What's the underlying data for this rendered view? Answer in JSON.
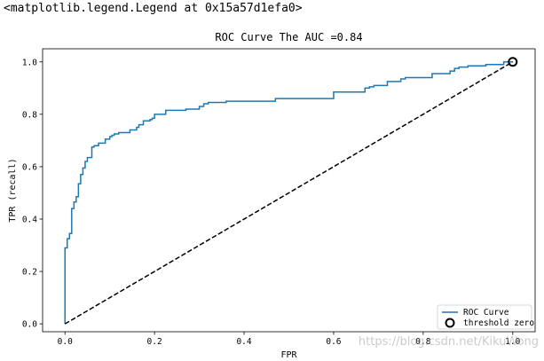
{
  "output_repr": "<matplotlib.legend.Legend at 0x15a57d1efa0>",
  "watermark": "https://blog.csdn.net/KikuWong",
  "chart_data": {
    "type": "line",
    "title": "ROC Curve The AUC =0.84",
    "xlabel": "FPR",
    "ylabel": "TPR (recall)",
    "xlim": [
      -0.05,
      1.05
    ],
    "ylim": [
      -0.03,
      1.05
    ],
    "xticks": [
      0.0,
      0.2,
      0.4,
      0.6,
      0.8,
      1.0
    ],
    "xtick_labels": [
      "0.0",
      "0.2",
      "0.4",
      "0.6",
      "0.8",
      "1.0"
    ],
    "yticks": [
      0.0,
      0.2,
      0.4,
      0.6,
      0.8,
      1.0
    ],
    "ytick_labels": [
      "0.0",
      "0.2",
      "0.4",
      "0.6",
      "0.8",
      "1.0"
    ],
    "grid": false,
    "legend_position": "lower-right",
    "series": [
      {
        "name": "ROC Curve",
        "color": "#1f77b4",
        "style": "solid",
        "x": [
          0.0,
          0.0,
          0.005,
          0.005,
          0.01,
          0.01,
          0.015,
          0.015,
          0.02,
          0.02,
          0.025,
          0.025,
          0.03,
          0.03,
          0.035,
          0.035,
          0.04,
          0.04,
          0.045,
          0.045,
          0.05,
          0.05,
          0.06,
          0.06,
          0.065,
          0.065,
          0.075,
          0.075,
          0.09,
          0.09,
          0.1,
          0.1,
          0.105,
          0.105,
          0.11,
          0.11,
          0.12,
          0.12,
          0.145,
          0.145,
          0.16,
          0.16,
          0.165,
          0.165,
          0.175,
          0.175,
          0.19,
          0.19,
          0.195,
          0.195,
          0.2,
          0.2,
          0.225,
          0.225,
          0.27,
          0.27,
          0.3,
          0.3,
          0.31,
          0.31,
          0.32,
          0.32,
          0.36,
          0.36,
          0.47,
          0.47,
          0.6,
          0.6,
          0.67,
          0.67,
          0.68,
          0.68,
          0.69,
          0.69,
          0.72,
          0.72,
          0.75,
          0.75,
          0.76,
          0.76,
          0.82,
          0.82,
          0.86,
          0.86,
          0.87,
          0.87,
          0.88,
          0.88,
          0.9,
          0.9,
          0.94,
          0.94,
          0.98,
          0.98,
          1.0
        ],
        "y": [
          0.0,
          0.29,
          0.29,
          0.325,
          0.325,
          0.345,
          0.345,
          0.44,
          0.44,
          0.465,
          0.465,
          0.485,
          0.485,
          0.535,
          0.535,
          0.57,
          0.57,
          0.595,
          0.595,
          0.62,
          0.62,
          0.635,
          0.635,
          0.675,
          0.675,
          0.68,
          0.68,
          0.69,
          0.69,
          0.705,
          0.705,
          0.715,
          0.715,
          0.72,
          0.72,
          0.725,
          0.725,
          0.73,
          0.73,
          0.74,
          0.74,
          0.75,
          0.75,
          0.76,
          0.76,
          0.775,
          0.775,
          0.78,
          0.78,
          0.785,
          0.785,
          0.8,
          0.8,
          0.815,
          0.815,
          0.82,
          0.82,
          0.83,
          0.83,
          0.84,
          0.84,
          0.845,
          0.845,
          0.85,
          0.85,
          0.86,
          0.86,
          0.885,
          0.885,
          0.9,
          0.9,
          0.905,
          0.905,
          0.91,
          0.91,
          0.925,
          0.925,
          0.935,
          0.935,
          0.94,
          0.94,
          0.955,
          0.955,
          0.965,
          0.965,
          0.975,
          0.975,
          0.98,
          0.98,
          0.985,
          0.985,
          0.99,
          0.99,
          1.0,
          1.0
        ]
      },
      {
        "name": "",
        "color": "#000000",
        "style": "dashed",
        "x": [
          0.0,
          1.0
        ],
        "y": [
          0.0,
          1.0
        ]
      }
    ],
    "markers": [
      {
        "name": "threshold zero",
        "x": 1.0,
        "y": 1.0,
        "shape": "circle-open",
        "color": "#000000"
      }
    ]
  }
}
